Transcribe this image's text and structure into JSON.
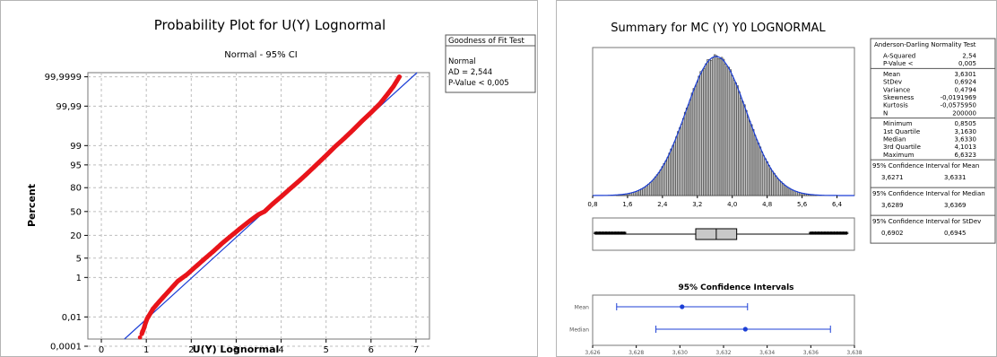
{
  "probability_plot": {
    "title": "Probability Plot for U(Y) Lognormal",
    "subtitle": "Normal - 95% CI",
    "xlabel": "U(Y) Lognormal",
    "ylabel": "Percent",
    "legend": {
      "title": "Goodness of Fit Test",
      "dist": "Normal",
      "ad": "AD = 2,544",
      "pvalue": "P-Value < 0,005"
    }
  },
  "summary": {
    "title": "Summary for MC (Y) Y0 LOGNORMAL",
    "ci_title": "95% Confidence Intervals",
    "ci_labels": [
      "Mean",
      "Median"
    ],
    "stats_sections": [
      {
        "header": "Anderson-Darling Normality Test",
        "rows": [
          [
            "A-Squared",
            "2,54"
          ],
          [
            "P-Value <",
            "0,005"
          ]
        ]
      },
      {
        "header": "",
        "rows": [
          [
            "Mean",
            "3,6301"
          ],
          [
            "StDev",
            "0,6924"
          ],
          [
            "Variance",
            "0,4794"
          ],
          [
            "Skewness",
            "-0,0191969"
          ],
          [
            "Kurtosis",
            "-0,0575950"
          ],
          [
            "N",
            "200000"
          ]
        ]
      },
      {
        "header": "",
        "rows": [
          [
            "Minimum",
            "0,8505"
          ],
          [
            "1st Quartile",
            "3,1630"
          ],
          [
            "Median",
            "3,6330"
          ],
          [
            "3rd Quartile",
            "4,1013"
          ],
          [
            "Maximum",
            "6,6323"
          ]
        ]
      },
      {
        "header": "95% Confidence Interval for Mean",
        "rows": [
          [
            "3,6271",
            "3,6331"
          ]
        ]
      },
      {
        "header": "95% Confidence Interval for Median",
        "rows": [
          [
            "3,6289",
            "3,6369"
          ]
        ]
      },
      {
        "header": "95% Confidence Interval for StDev",
        "rows": [
          [
            "0,6902",
            "0,6945"
          ]
        ]
      }
    ]
  },
  "chart_data": [
    {
      "type": "scatter",
      "title": "Probability Plot for U(Y) Lognormal",
      "subtitle": "Normal - 95% CI",
      "xlabel": "U(Y) Lognormal",
      "ylabel": "Percent",
      "x_ticks": [
        0,
        1,
        2,
        3,
        4,
        5,
        6,
        7
      ],
      "x_tick_labels": [
        "0",
        "1",
        "2",
        "3",
        "4",
        "5",
        "6",
        "7"
      ],
      "xlim": [
        -0.3,
        7.3
      ],
      "y_scale": "normal-probability",
      "y_ticks": [
        0.0001,
        0.01,
        1,
        5,
        20,
        50,
        80,
        95,
        99,
        99.99,
        99.9999
      ],
      "y_tick_labels": [
        "0,0001",
        "0,01",
        "1",
        "5",
        "20",
        "50",
        "80",
        "95",
        "99",
        "99,99",
        "99,9999"
      ],
      "fit_line": {
        "mean": 3.6301,
        "stdev": 0.6924
      },
      "points": [
        [
          0.9,
          0.0008
        ],
        [
          0.95,
          0.002
        ],
        [
          0.98,
          0.004
        ],
        [
          1.02,
          0.008
        ],
        [
          1.06,
          0.012
        ],
        [
          1.15,
          0.03
        ],
        [
          1.3,
          0.08
        ],
        [
          1.5,
          0.25
        ],
        [
          1.7,
          0.7
        ],
        [
          1.9,
          1.3
        ],
        [
          2.1,
          2.6
        ],
        [
          2.3,
          4.8
        ],
        [
          2.5,
          8.2
        ],
        [
          2.7,
          13.5
        ],
        [
          2.9,
          20
        ],
        [
          3.1,
          28
        ],
        [
          3.3,
          37
        ],
        [
          3.5,
          46
        ],
        [
          3.63,
          50
        ],
        [
          3.8,
          60
        ],
        [
          4.0,
          70
        ],
        [
          4.2,
          79
        ],
        [
          4.4,
          86
        ],
        [
          4.6,
          91.5
        ],
        [
          4.8,
          95.3
        ],
        [
          5.0,
          97.6
        ],
        [
          5.2,
          98.9
        ],
        [
          5.4,
          99.5
        ],
        [
          5.6,
          99.8
        ],
        [
          5.8,
          99.93
        ],
        [
          6.0,
          99.976
        ],
        [
          6.2,
          99.993
        ],
        [
          6.35,
          99.998
        ],
        [
          6.5,
          99.9995
        ],
        [
          6.63,
          99.9999
        ]
      ],
      "grid": true,
      "legend_placement": "top-right"
    },
    {
      "type": "bar",
      "title": "Summary for MC (Y) Y0 LOGNORMAL",
      "subtype": "histogram",
      "x_ticks": [
        0.8,
        1.6,
        2.4,
        3.2,
        4.0,
        4.8,
        5.6,
        6.4
      ],
      "x_tick_labels": [
        "0,8",
        "1,6",
        "2,4",
        "3,2",
        "4,0",
        "4,8",
        "5,6",
        "6,4"
      ],
      "xlim": [
        0.8,
        6.8
      ],
      "distribution": {
        "mean": 3.6301,
        "stdev": 0.6924,
        "n": 200000
      },
      "boxplot": {
        "min": 0.8505,
        "q1": 3.163,
        "median": 3.633,
        "q3": 4.1013,
        "max": 6.6323
      }
    },
    {
      "type": "scatter",
      "title": "95% Confidence Intervals",
      "categories": [
        "Mean",
        "Median"
      ],
      "intervals": [
        {
          "name": "Mean",
          "low": 3.6271,
          "center": 3.6301,
          "high": 3.6331
        },
        {
          "name": "Median",
          "low": 3.6289,
          "center": 3.633,
          "high": 3.6369
        }
      ],
      "x_ticks": [
        3.626,
        3.628,
        3.63,
        3.632,
        3.634,
        3.636,
        3.638
      ],
      "x_tick_labels": [
        "3,626",
        "3,628",
        "3,630",
        "3,632",
        "3,634",
        "3,636",
        "3,638"
      ],
      "xlim": [
        3.626,
        3.638
      ]
    }
  ],
  "colors": {
    "points": "#e8141a",
    "fit": "#1c3fd6",
    "ci": "#1c3fd6",
    "hist_fill": "#c8c8c8",
    "hist_edge": "#1e1e1e",
    "grid": "#bdbdbd"
  }
}
